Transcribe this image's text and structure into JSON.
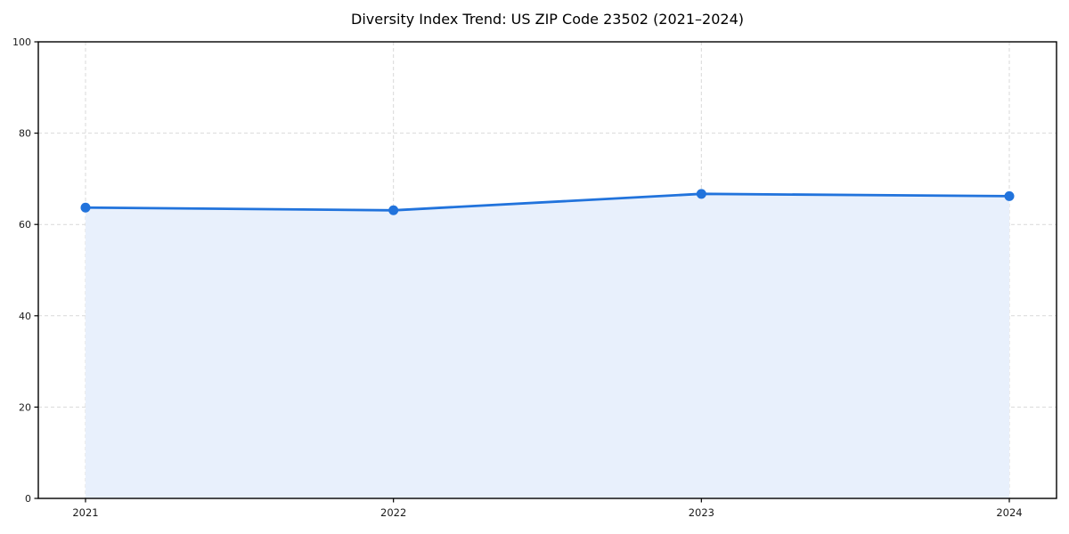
{
  "chart_data": {
    "type": "area",
    "title": "Diversity Index Trend: US ZIP Code 23502 (2021–2024)",
    "categories": [
      "2021",
      "2022",
      "2023",
      "2024"
    ],
    "series": [
      {
        "name": "Diversity Index",
        "values": [
          63.7,
          63.1,
          66.7,
          66.2
        ]
      }
    ],
    "xlabel": "",
    "ylabel": "",
    "ylim": [
      0,
      100
    ],
    "yticks": [
      0,
      20,
      40,
      60,
      80,
      100
    ],
    "grid": true,
    "grid_style": "dashed",
    "legend": false,
    "colors": {
      "line": "#2173dc",
      "marker": "#2173dc",
      "fill": "#e8f0fc",
      "grid": "#d9d9d9",
      "spine": "#000000",
      "tick_label": "#1a1a1a",
      "title": "#000000",
      "background": "#ffffff"
    }
  }
}
